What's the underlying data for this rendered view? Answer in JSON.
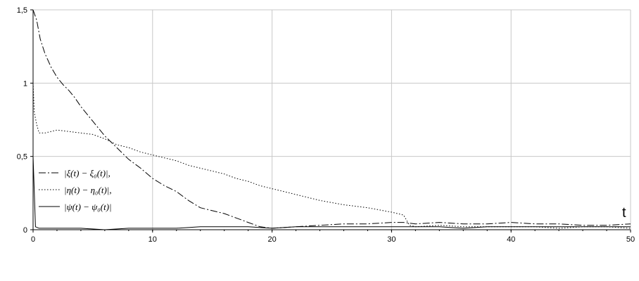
{
  "chart_data": {
    "type": "line",
    "title": "",
    "xlabel": "t",
    "ylabel": "",
    "xlim": [
      0,
      50
    ],
    "ylim": [
      0,
      1.5
    ],
    "grid": true,
    "legend_position": "left",
    "x_ticks": [
      0,
      10,
      20,
      30,
      40,
      50
    ],
    "x_tick_labels": [
      "0",
      "10",
      "20",
      "30",
      "40",
      "50"
    ],
    "y_ticks": [
      0,
      0.5,
      1,
      1.5
    ],
    "y_tick_labels": [
      "0",
      "0,5",
      "1",
      "1,5"
    ],
    "series": [
      {
        "name": "|ξ(t) − ξ₀(t)|,",
        "style": "dashdot",
        "color": "#000000",
        "x": [
          0,
          0.3,
          0.6,
          1,
          1.5,
          2,
          2.5,
          3,
          3.5,
          4,
          5,
          6,
          7,
          8,
          9,
          10,
          11,
          12,
          13,
          14,
          15,
          16,
          17,
          18,
          19,
          20,
          22,
          24,
          26,
          28,
          30,
          31,
          32,
          34,
          36,
          38,
          40,
          42,
          44,
          46,
          48,
          50
        ],
        "y": [
          1.5,
          1.43,
          1.3,
          1.2,
          1.11,
          1.04,
          0.99,
          0.95,
          0.9,
          0.84,
          0.74,
          0.64,
          0.56,
          0.48,
          0.42,
          0.35,
          0.3,
          0.26,
          0.2,
          0.15,
          0.13,
          0.11,
          0.08,
          0.05,
          0.02,
          0.01,
          0.02,
          0.03,
          0.04,
          0.04,
          0.05,
          0.05,
          0.04,
          0.05,
          0.04,
          0.04,
          0.05,
          0.04,
          0.04,
          0.03,
          0.03,
          0.04
        ]
      },
      {
        "name": "|η(t) − η₀(t)|,",
        "style": "dotted",
        "color": "#000000",
        "x": [
          0,
          0.1,
          0.3,
          0.5,
          1,
          2,
          3,
          4,
          5,
          6,
          7,
          8,
          9,
          10,
          11,
          12,
          13,
          14,
          15,
          16,
          17,
          18,
          19,
          20,
          22,
          24,
          26,
          28,
          30,
          31,
          31.5,
          32,
          34,
          36,
          38,
          40,
          42,
          44,
          46,
          48,
          50
        ],
        "y": [
          1.0,
          0.8,
          0.72,
          0.66,
          0.66,
          0.68,
          0.67,
          0.66,
          0.65,
          0.62,
          0.58,
          0.56,
          0.53,
          0.51,
          0.49,
          0.47,
          0.44,
          0.42,
          0.4,
          0.38,
          0.35,
          0.33,
          0.3,
          0.28,
          0.24,
          0.2,
          0.17,
          0.15,
          0.12,
          0.1,
          0.03,
          0.02,
          0.03,
          0.02,
          0.02,
          0.02,
          0.02,
          0.01,
          0.02,
          0.02,
          0.01
        ]
      },
      {
        "name": "|ψ(t) − ψ₀(t)|",
        "style": "solid",
        "color": "#000000",
        "x": [
          0,
          0.2,
          0.5,
          1,
          2,
          4,
          6,
          8,
          10,
          12,
          14,
          16,
          18,
          20,
          22,
          24,
          26,
          28,
          30,
          32,
          34,
          36,
          38,
          40,
          42,
          44,
          46,
          48,
          50
        ],
        "y": [
          0.5,
          0.02,
          0.01,
          0.01,
          0.01,
          0.01,
          0.0,
          0.01,
          0.01,
          0.01,
          0.02,
          0.02,
          0.02,
          0.01,
          0.02,
          0.02,
          0.02,
          0.02,
          0.02,
          0.02,
          0.02,
          0.01,
          0.02,
          0.02,
          0.02,
          0.02,
          0.02,
          0.02,
          0.02
        ]
      }
    ]
  }
}
